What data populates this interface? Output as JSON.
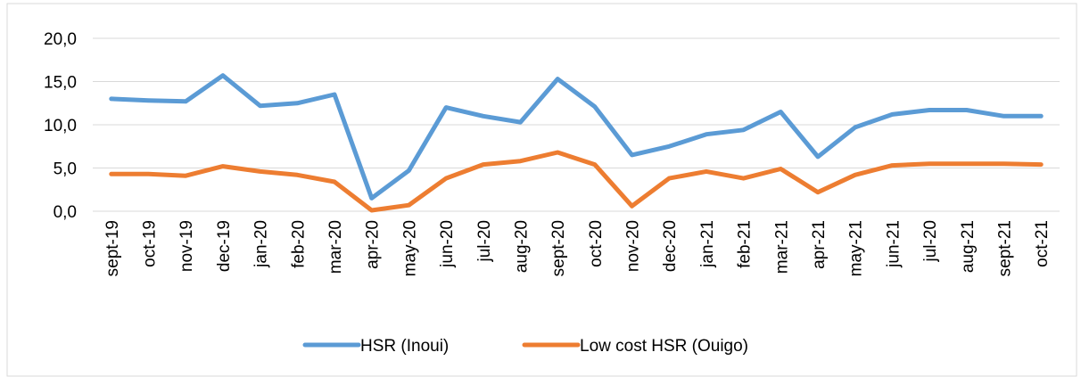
{
  "chart_data": {
    "type": "line",
    "categories": [
      "sept-19",
      "oct-19",
      "nov-19",
      "dec-19",
      "jan-20",
      "feb-20",
      "mar-20",
      "apr-20",
      "may-20",
      "jun-20",
      "jul-20",
      "aug-20",
      "sept-20",
      "oct-20",
      "nov-20",
      "dec-20",
      "jan-21",
      "feb-21",
      "mar-21",
      "apr-21",
      "may-21",
      "jun-21",
      "jul-20",
      "aug-21",
      "sept-21",
      "oct-21"
    ],
    "series": [
      {
        "name": "HSR (Inoui)",
        "color": "#5b9bd5",
        "values": [
          13.0,
          12.8,
          12.7,
          15.7,
          12.2,
          12.5,
          13.5,
          1.5,
          4.7,
          12.0,
          11.0,
          10.3,
          15.3,
          12.1,
          6.5,
          7.5,
          8.9,
          9.4,
          11.5,
          6.3,
          9.7,
          11.2,
          11.7,
          11.7,
          11.0,
          11.0
        ]
      },
      {
        "name": "Low cost HSR (Ouigo)",
        "color": "#ed7d31",
        "values": [
          4.3,
          4.3,
          4.1,
          5.2,
          4.6,
          4.2,
          3.4,
          0.1,
          0.7,
          3.8,
          5.4,
          5.8,
          6.8,
          5.4,
          0.6,
          3.8,
          4.6,
          3.8,
          4.9,
          2.2,
          4.2,
          5.3,
          5.5,
          5.5,
          5.5,
          5.4
        ]
      }
    ],
    "ylim": [
      0,
      20
    ],
    "yticks": [
      {
        "value": 0,
        "label": "0,0"
      },
      {
        "value": 5,
        "label": "5,0"
      },
      {
        "value": 10,
        "label": "10,0"
      },
      {
        "value": 15,
        "label": "15,0"
      },
      {
        "value": 20,
        "label": "20,0"
      }
    ],
    "grid": true,
    "legend": "bottom"
  }
}
